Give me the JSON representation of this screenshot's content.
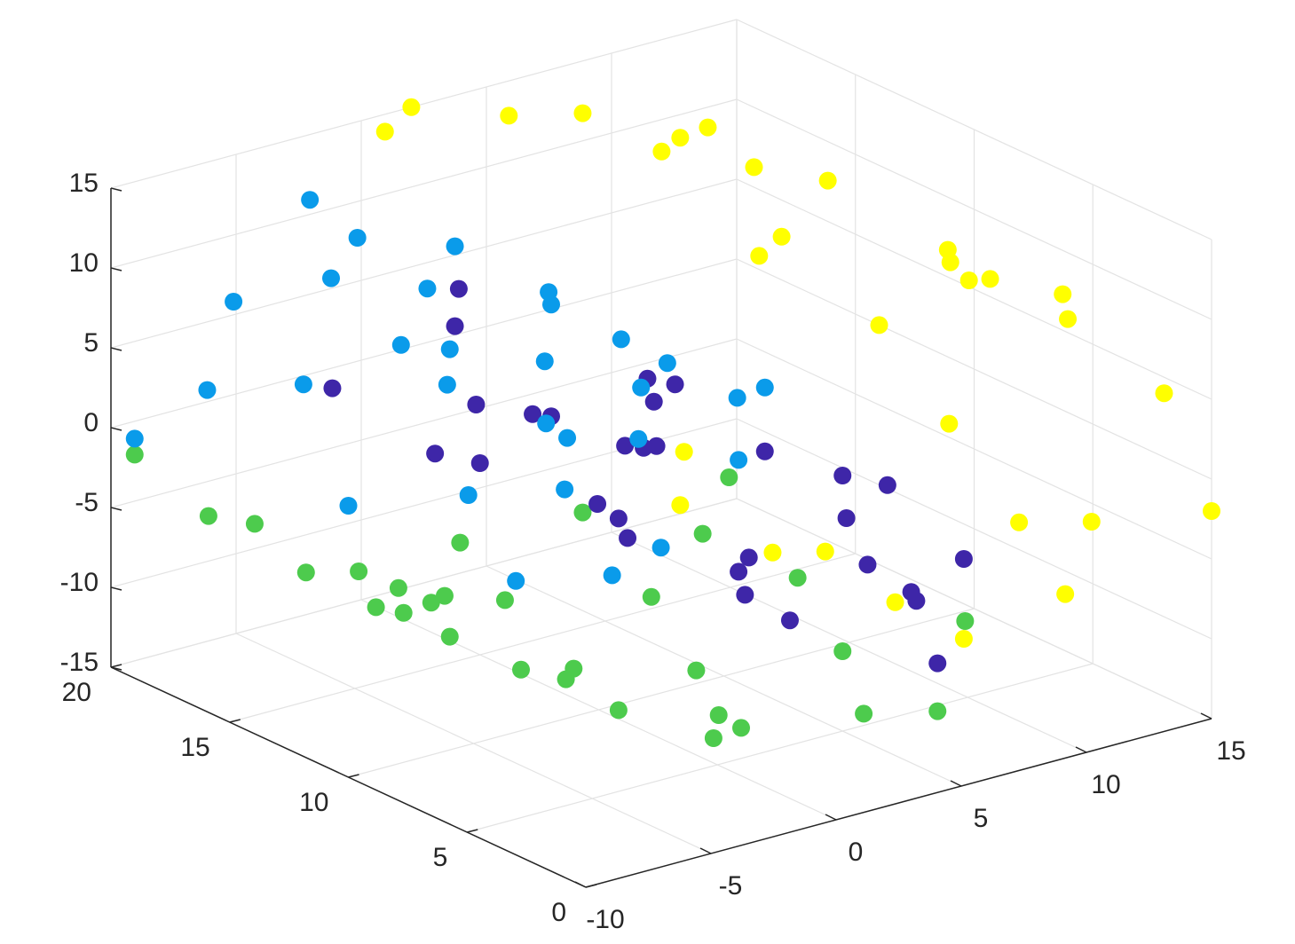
{
  "chart_data": {
    "type": "scatter3d",
    "xlim": [
      -10,
      15
    ],
    "xticks": [
      -10,
      -5,
      0,
      5,
      10,
      15
    ],
    "ylim": [
      0,
      20
    ],
    "yticks": [
      0,
      5,
      10,
      15,
      20
    ],
    "zlim": [
      -15,
      15
    ],
    "zticks": [
      -15,
      -10,
      -5,
      0,
      5,
      10,
      15
    ],
    "grid": true,
    "series": [
      {
        "color": "#ffff00",
        "x": [
          0,
          2,
          4,
          6,
          8,
          10,
          11,
          12,
          13,
          14,
          15,
          15,
          14,
          13,
          12,
          11,
          10,
          9,
          8,
          7,
          6,
          14,
          15,
          13,
          12,
          11,
          10,
          9,
          15,
          14
        ],
        "y": [
          19,
          20,
          18,
          17,
          15,
          1,
          17,
          13,
          9,
          5,
          2,
          14,
          10,
          6,
          3,
          18,
          11,
          7,
          15,
          2,
          9,
          18,
          0,
          16,
          20,
          6,
          14,
          3,
          11,
          4
        ],
        "z": [
          15,
          15,
          15,
          15,
          14,
          13,
          12,
          11,
          9,
          7,
          4,
          0,
          -3,
          -6,
          -8,
          -9,
          -10,
          -10,
          -9,
          -8,
          -7,
          2,
          -2,
          5,
          8,
          10,
          12,
          13,
          6,
          -5
        ]
      },
      {
        "color": "#4dcb4d",
        "x": [
          -10,
          -9,
          -8,
          -7,
          -6,
          -5,
          -4,
          -3,
          -2,
          -1,
          0,
          1,
          2,
          3,
          4,
          5,
          6,
          7,
          8,
          9,
          -9,
          -7,
          -5,
          -3,
          -1,
          1,
          3,
          5,
          7,
          -8
        ],
        "y": [
          19,
          15,
          18,
          12,
          16,
          8,
          14,
          6,
          18,
          10,
          4,
          15,
          8,
          2,
          12,
          5,
          17,
          9,
          3,
          14,
          7,
          4,
          11,
          2,
          16,
          6,
          19,
          1,
          13,
          10
        ],
        "z": [
          -1,
          -3,
          -5,
          -7,
          -8,
          -9,
          -10,
          -11,
          -11,
          -12,
          -12,
          -12,
          -12,
          -11,
          -11,
          -10,
          -10,
          -9,
          -8,
          -7,
          -2,
          -6,
          -9,
          -10,
          -12,
          -13,
          -12,
          -11,
          -9,
          -4
        ]
      },
      {
        "color": "#3e26a8",
        "x": [
          -4,
          -3,
          -2,
          -1,
          0,
          1,
          2,
          3,
          4,
          5,
          6,
          7,
          8,
          8,
          7,
          6,
          5,
          4,
          3,
          2,
          1,
          0,
          -1,
          -2,
          -3,
          2,
          4,
          6,
          0,
          3
        ],
        "y": [
          17,
          12,
          6,
          15,
          3,
          9,
          18,
          1,
          11,
          5,
          14,
          2,
          8,
          16,
          4,
          10,
          1,
          13,
          7,
          19,
          3,
          15,
          9,
          2,
          6,
          11,
          17,
          5,
          12,
          0
        ],
        "z": [
          2,
          4,
          5,
          6,
          6,
          6,
          5,
          4,
          3,
          1,
          -1,
          -3,
          -5,
          -6,
          -7,
          -8,
          -8,
          -8,
          -7,
          -6,
          -5,
          -3,
          -1,
          0,
          1,
          0,
          -3,
          -5,
          2,
          -2
        ]
      },
      {
        "color": "#0a9bea",
        "x": [
          -10,
          -10,
          -9,
          -9,
          -8,
          -8,
          -7,
          -7,
          -6,
          -6,
          -5,
          -5,
          -4,
          -4,
          -3,
          -3,
          -2,
          -2,
          -1,
          -1,
          0,
          0,
          -8,
          -6,
          -4,
          -2,
          -9,
          -5,
          -3,
          -7
        ],
        "y": [
          19,
          10,
          17,
          6,
          14,
          3,
          18,
          9,
          12,
          2,
          16,
          7,
          4,
          13,
          19,
          1,
          10,
          5,
          15,
          8,
          3,
          12,
          1,
          5,
          8,
          2,
          4,
          11,
          17,
          0
        ],
        "z": [
          0,
          2,
          4,
          5,
          6,
          7,
          8,
          9,
          9,
          10,
          10,
          11,
          11,
          11,
          12,
          12,
          12,
          11,
          11,
          10,
          10,
          9,
          3,
          8,
          6,
          7,
          1,
          9,
          11,
          5
        ]
      }
    ]
  }
}
